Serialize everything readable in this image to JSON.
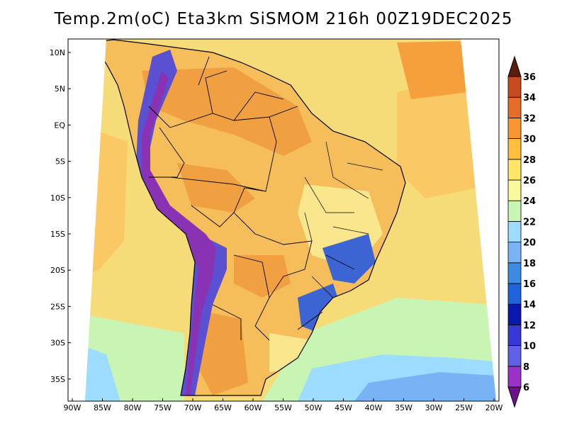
{
  "title": "Temp.2m(oC) Eta3km SiSMOM 216h 00Z19DEC2025",
  "map": {
    "lat_ticks": [
      "10N",
      "5N",
      "EQ",
      "5S",
      "10S",
      "15S",
      "20S",
      "25S",
      "30S",
      "35S"
    ],
    "lon_ticks": [
      "90W",
      "85W",
      "80W",
      "75W",
      "70W",
      "65W",
      "60W",
      "55W",
      "50W",
      "45W",
      "40W",
      "35W",
      "30W",
      "25W",
      "20W"
    ]
  },
  "colorbar": {
    "labels": [
      "6",
      "8",
      "10",
      "12",
      "14",
      "16",
      "18",
      "20",
      "22",
      "24",
      "26",
      "28",
      "30",
      "32",
      "34",
      "36"
    ],
    "colors": [
      "#6e0f8c",
      "#9a32c8",
      "#6060e8",
      "#3838d8",
      "#0a18b0",
      "#1e64dc",
      "#3c8ce6",
      "#78b4f5",
      "#9cdcff",
      "#c8f5b4",
      "#fafa9a",
      "#ffe664",
      "#ffbe3c",
      "#fa9632",
      "#e66c28",
      "#c84a1e",
      "#963214",
      "#5a1e0a"
    ]
  },
  "field_colors": {
    "ocean_mid": "#f6dc78",
    "ocean_warm": "#fac864",
    "ocean_hot": "#f5a03c",
    "cool_south": "#c8f5b4",
    "cold_south": "#9cdcff",
    "cold_deep": "#78b4f5",
    "land_hot": "#f0a040",
    "land_warm": "#f5be5a",
    "land_mild": "#fae68c",
    "highland_cold": "#3c64d2",
    "andes_blue": "#5a50d2",
    "andes_purple": "#8a32b4",
    "border": "#000000"
  }
}
